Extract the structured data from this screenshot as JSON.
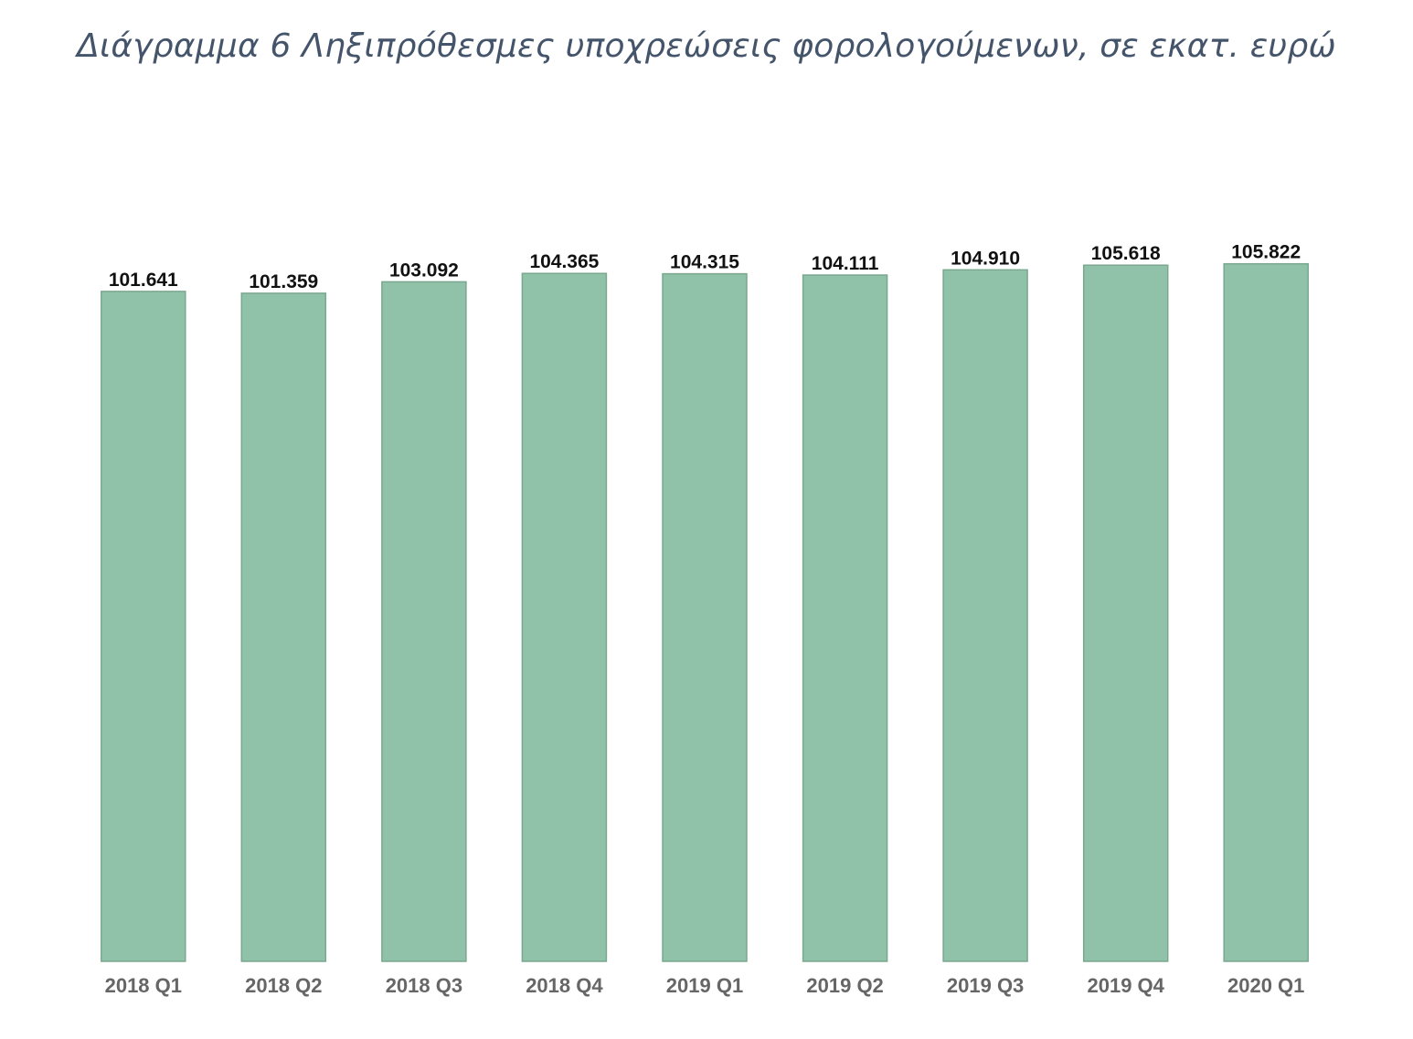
{
  "chart_data": {
    "type": "bar",
    "title": "Διάγραμμα 6 Ληξιπρόθεσμες υποχρεώσεις φορολογούμενων, σε εκατ. ευρώ",
    "categories": [
      "2018 Q1",
      "2018 Q2",
      "2018 Q3",
      "2018 Q4",
      "2019 Q1",
      "2019 Q2",
      "2019 Q3",
      "2019 Q4",
      "2020 Q1"
    ],
    "values": [
      101641,
      101359,
      103092,
      104365,
      104315,
      104111,
      104910,
      105618,
      105822
    ],
    "value_labels": [
      "101.641",
      "101.359",
      "103.092",
      "104.365",
      "104.315",
      "104.111",
      "104.910",
      "105.618",
      "105.822"
    ],
    "xlabel": "",
    "ylabel": "",
    "ylim": [
      0,
      122000
    ],
    "grid": false,
    "legend": "none",
    "bar_color": "#8fc2a8",
    "title_color": "#44546a"
  }
}
